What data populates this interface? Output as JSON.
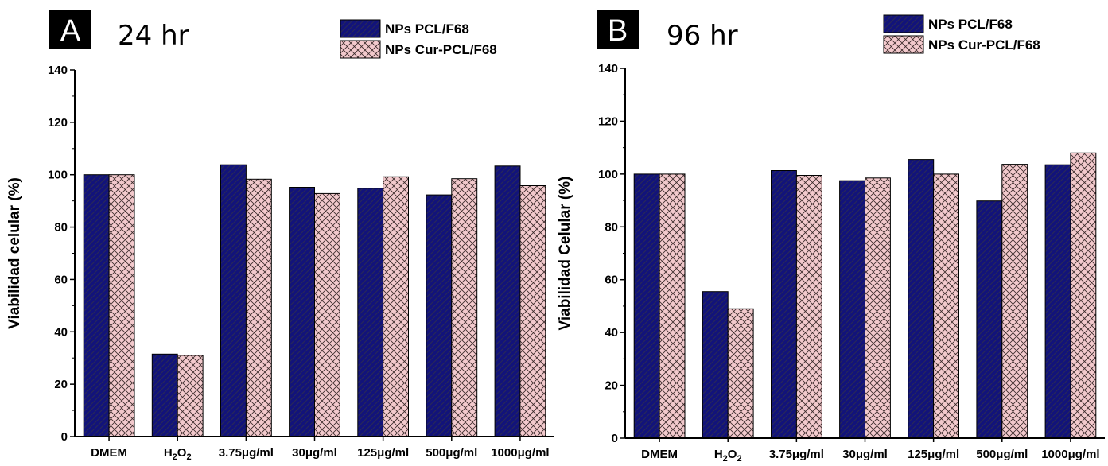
{
  "figure": {
    "colors": {
      "series1_fill": "#12137a",
      "series2_fill": "#f2c9cc",
      "hatch": "#1a1a2e",
      "axis": "#000000",
      "badge": "#000000"
    }
  },
  "chart_data": [
    {
      "type": "bar",
      "panel_letter": "A",
      "panel_time": "24 hr",
      "ylabel": "Viabilidad celular (%)",
      "xlabel": "",
      "ylim": [
        0,
        140
      ],
      "yticks": [
        0,
        20,
        40,
        60,
        80,
        100,
        120,
        140
      ],
      "categories": [
        {
          "base": "DMEM",
          "sub": []
        },
        {
          "base": "H",
          "sub": [
            [
              "2",
              ""
            ],
            [
              "O",
              ""
            ],
            [
              "2",
              ""
            ]
          ],
          "display": "H₂O₂"
        },
        {
          "base": "3.75μg/ml",
          "sub": []
        },
        {
          "base": "30μg/ml",
          "sub": []
        },
        {
          "base": "125μg/ml",
          "sub": []
        },
        {
          "base": "500μg/ml",
          "sub": []
        },
        {
          "base": "1000μg/ml",
          "sub": []
        }
      ],
      "series": [
        {
          "name": "NPs PCL/F68",
          "values": [
            100,
            31.5,
            103.8,
            95.2,
            94.8,
            92.3,
            103.3
          ]
        },
        {
          "name": "NPs Cur-PCL/F68",
          "values": [
            100,
            31,
            98.3,
            92.8,
            99.2,
            98.5,
            95.8
          ]
        }
      ],
      "legend_position": "top-right",
      "grid": false
    },
    {
      "type": "bar",
      "panel_letter": "B",
      "panel_time": "96 hr",
      "ylabel": "Viabilidad Celular (%)",
      "xlabel": "",
      "ylim": [
        0,
        140
      ],
      "yticks": [
        0,
        20,
        40,
        60,
        80,
        100,
        120,
        140
      ],
      "categories": [
        {
          "base": "DMEM",
          "sub": []
        },
        {
          "base": "H",
          "sub": [
            [
              "2",
              ""
            ],
            [
              "O",
              ""
            ],
            [
              "2",
              ""
            ]
          ],
          "display": "H₂O₂"
        },
        {
          "base": "3.75μg/ml",
          "sub": []
        },
        {
          "base": "30μg/ml",
          "sub": []
        },
        {
          "base": "125μg/ml",
          "sub": []
        },
        {
          "base": "500μg/ml",
          "sub": []
        },
        {
          "base": "1000μg/ml",
          "sub": []
        }
      ],
      "series": [
        {
          "name": "NPs PCL/F68",
          "values": [
            100,
            55.5,
            101.3,
            97.5,
            105.5,
            89.8,
            103.5
          ]
        },
        {
          "name": "NPs Cur-PCL/F68",
          "values": [
            100,
            49,
            99.5,
            98.5,
            100,
            103.7,
            108
          ]
        }
      ],
      "legend_position": "top-right",
      "grid": false
    }
  ]
}
